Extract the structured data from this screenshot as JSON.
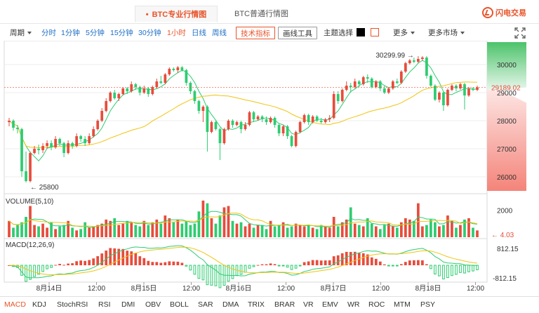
{
  "tabs": [
    {
      "label": "BTC专业行情图",
      "active": true
    },
    {
      "label": "BTC普通行情图",
      "active": false
    }
  ],
  "brand": {
    "label": "闪电交易",
    "icon": "lightning-circle-icon"
  },
  "toolbar": {
    "period_label": "周期",
    "intervals": [
      "分时",
      "1分钟",
      "5分钟",
      "15分钟",
      "30分钟",
      "1小时",
      "日线",
      "周线"
    ],
    "tech_button": "技术指标",
    "draw_button": "画线工具",
    "theme_label": "主题选择",
    "more_label": "更多",
    "more_markets_label": "更多市场",
    "fullscreen_icon": "expand-arrows-icon"
  },
  "chart_data": {
    "type": "candlestick",
    "y_axis": {
      "ticks": [
        26000,
        27000,
        28000,
        29000,
        30000
      ],
      "range": [
        25500,
        30800
      ]
    },
    "x_axis": {
      "labels": [
        "8月14日",
        "12:00",
        "8月15日",
        "12:00",
        "8月16日",
        "12:00",
        "8月17日",
        "12:00",
        "8月18日",
        "12:00"
      ]
    },
    "current_price": "29189.02",
    "annotations": {
      "high": "30299.99",
      "low": "25800"
    },
    "candles": [
      [
        27950,
        28000,
        27800,
        28100
      ],
      [
        28000,
        27750,
        27650,
        28050
      ],
      [
        27750,
        27700,
        27550,
        27850
      ],
      [
        27700,
        26200,
        26000,
        27750
      ],
      [
        26200,
        25850,
        25800,
        26900
      ],
      [
        25850,
        26850,
        25800,
        26900
      ],
      [
        26850,
        27000,
        26800,
        27100
      ],
      [
        27000,
        26950,
        26800,
        27150
      ],
      [
        26950,
        27100,
        26850,
        27200
      ],
      [
        27100,
        27200,
        27000,
        27300
      ],
      [
        27200,
        27050,
        26950,
        27300
      ],
      [
        27050,
        27350,
        27000,
        27450
      ],
      [
        27350,
        27200,
        27100,
        27400
      ],
      [
        27200,
        26850,
        26700,
        27250
      ],
      [
        26850,
        27200,
        26800,
        27300
      ],
      [
        27200,
        27100,
        27000,
        27250
      ],
      [
        27100,
        27450,
        27050,
        27550
      ],
      [
        27450,
        27350,
        27250,
        27500
      ],
      [
        27350,
        27200,
        27100,
        27450
      ],
      [
        27200,
        27450,
        27150,
        27550
      ],
      [
        27450,
        27700,
        27400,
        27800
      ],
      [
        27700,
        28000,
        27650,
        28050
      ],
      [
        28000,
        28350,
        27950,
        28450
      ],
      [
        28350,
        28700,
        28300,
        28800
      ],
      [
        28700,
        29000,
        28650,
        29050
      ],
      [
        29000,
        28800,
        28750,
        29100
      ],
      [
        28800,
        28950,
        28700,
        29000
      ],
      [
        28950,
        29150,
        28900,
        29200
      ],
      [
        29150,
        29050,
        28950,
        29200
      ],
      [
        29050,
        29300,
        29000,
        29400
      ],
      [
        29300,
        29200,
        29100,
        29350
      ],
      [
        29200,
        29000,
        28900,
        29250
      ],
      [
        29000,
        29150,
        28950,
        29250
      ],
      [
        29150,
        28950,
        28850,
        29200
      ],
      [
        28950,
        29200,
        28900,
        29250
      ],
      [
        29200,
        29400,
        29150,
        29500
      ],
      [
        29400,
        29350,
        29300,
        29600
      ],
      [
        29350,
        29650,
        29300,
        29700
      ],
      [
        29650,
        29850,
        29600,
        29900
      ],
      [
        29850,
        29800,
        29750,
        29900
      ],
      [
        29800,
        29900,
        29700,
        29950
      ],
      [
        29900,
        29800,
        29750,
        29950
      ],
      [
        29800,
        29350,
        29250,
        29850
      ],
      [
        29350,
        29050,
        28950,
        29400
      ],
      [
        29050,
        28700,
        28600,
        29100
      ],
      [
        28700,
        28350,
        28250,
        28750
      ],
      [
        28350,
        28500,
        27950,
        28550
      ],
      [
        28500,
        27600,
        26900,
        28550
      ],
      [
        27600,
        27950,
        27550,
        28000
      ],
      [
        27950,
        27700,
        27650,
        28000
      ],
      [
        27700,
        27200,
        26600,
        27750
      ],
      [
        27200,
        27700,
        27150,
        27750
      ],
      [
        27700,
        28000,
        27650,
        28050
      ],
      [
        28000,
        27850,
        27750,
        28050
      ],
      [
        27850,
        27950,
        27800,
        28000
      ],
      [
        27950,
        27700,
        27550,
        28000
      ],
      [
        27700,
        27850,
        27650,
        27950
      ],
      [
        27850,
        28300,
        27800,
        28350
      ],
      [
        28300,
        28050,
        27950,
        28350
      ],
      [
        28050,
        28150,
        28000,
        28200
      ],
      [
        28150,
        28050,
        27950,
        28200
      ],
      [
        28050,
        27950,
        27850,
        28150
      ],
      [
        27950,
        28100,
        27900,
        28150
      ],
      [
        28100,
        27850,
        27750,
        28150
      ],
      [
        27850,
        27550,
        27450,
        27900
      ],
      [
        27550,
        27800,
        27450,
        27850
      ],
      [
        27800,
        27450,
        27350,
        27850
      ],
      [
        27450,
        27100,
        27050,
        27500
      ],
      [
        27100,
        27600,
        27050,
        27650
      ],
      [
        27600,
        27950,
        27550,
        28000
      ],
      [
        27950,
        28200,
        27900,
        28250
      ],
      [
        28200,
        27950,
        27850,
        28250
      ],
      [
        27950,
        28150,
        27900,
        28200
      ],
      [
        28150,
        28000,
        27950,
        28200
      ],
      [
        28000,
        27950,
        27900,
        28100
      ],
      [
        27950,
        28050,
        27900,
        28100
      ],
      [
        28050,
        28100,
        27950,
        28200
      ],
      [
        28100,
        28950,
        28050,
        29050
      ],
      [
        28950,
        28700,
        28600,
        29050
      ],
      [
        28700,
        29100,
        28650,
        29150
      ],
      [
        29100,
        29250,
        29050,
        29400
      ],
      [
        29250,
        29200,
        29000,
        29350
      ],
      [
        29200,
        29400,
        29150,
        29500
      ],
      [
        29400,
        29300,
        29200,
        29450
      ],
      [
        29300,
        29550,
        29250,
        29600
      ],
      [
        29550,
        29500,
        29350,
        29650
      ],
      [
        29500,
        29200,
        29150,
        29550
      ],
      [
        29200,
        29400,
        29150,
        29450
      ],
      [
        29400,
        29150,
        29050,
        29450
      ],
      [
        29150,
        29000,
        28950,
        29250
      ],
      [
        29000,
        29150,
        28950,
        29200
      ],
      [
        29150,
        29400,
        29100,
        29450
      ],
      [
        29400,
        29350,
        29300,
        29500
      ],
      [
        29350,
        29750,
        29300,
        29800
      ],
      [
        29750,
        30050,
        29700,
        30100
      ],
      [
        30050,
        30150,
        30000,
        30200
      ],
      [
        30150,
        30100,
        30050,
        30250
      ],
      [
        30100,
        30200,
        30050,
        30300
      ],
      [
        30200,
        30250,
        30150,
        30300
      ],
      [
        30250,
        29600,
        29500,
        30300
      ],
      [
        29600,
        29250,
        29200,
        29650
      ],
      [
        29250,
        28750,
        28700,
        29300
      ],
      [
        28750,
        29000,
        28650,
        29050
      ],
      [
        29000,
        28550,
        28350,
        29050
      ],
      [
        28550,
        29100,
        28500,
        29150
      ],
      [
        29100,
        29250,
        29050,
        29300
      ],
      [
        29250,
        29150,
        29050,
        29300
      ],
      [
        29150,
        29300,
        29100,
        29350
      ],
      [
        29300,
        28900,
        28400,
        29350
      ],
      [
        28900,
        29150,
        28850,
        29200
      ],
      [
        29150,
        29100,
        29050,
        29200
      ],
      [
        29100,
        29189,
        29050,
        29250
      ]
    ],
    "volume": {
      "label": "VOLUME(5,10)",
      "ticks": [
        2000
      ],
      "last_value": "4.03",
      "values": [
        1200,
        700,
        900,
        1100,
        1500,
        2300,
        900,
        800,
        1000,
        700,
        1100,
        600,
        800,
        900,
        1200,
        700,
        500,
        600,
        1100,
        700,
        800,
        900,
        1000,
        1300,
        1200,
        1400,
        900,
        1000,
        1200,
        1100,
        900,
        800,
        1200,
        900,
        1100,
        1300,
        1000,
        1600,
        1400,
        1100,
        1300,
        1000,
        1200,
        900,
        1000,
        1900,
        2700,
        2500,
        1400,
        1000,
        1600,
        2200,
        2300,
        1200,
        1000,
        1100,
        800,
        1000,
        700,
        900,
        900,
        600,
        1200,
        800,
        900,
        1100,
        700,
        800,
        1000,
        900,
        800,
        900,
        700,
        600,
        900,
        800,
        700,
        1500,
        800,
        1100,
        1300,
        2200,
        1000,
        900,
        800,
        1400,
        1000,
        800,
        600,
        900,
        1000,
        800,
        700,
        1100,
        1400,
        1300,
        1200,
        2500,
        800,
        900,
        1300,
        1100,
        800,
        900,
        1600,
        1200,
        700,
        900,
        1300,
        1400,
        700,
        500
      ]
    },
    "macd": {
      "label": "MACD(12,26,9)",
      "ticks": [
        "812.15",
        "-812.15"
      ]
    }
  },
  "indicators": [
    "MACD",
    "KDJ",
    "StochRSI",
    "RSI",
    "DMI",
    "OBV",
    "BOLL",
    "SAR",
    "DMA",
    "TRIX",
    "BRAR",
    "VR",
    "EMV",
    "WR",
    "ROC",
    "MTM",
    "PSY"
  ],
  "colors": {
    "up": "#e74c3c",
    "down": "#2ecc71",
    "ma_fast": "#2ecc71",
    "ma_slow": "#f1c40f",
    "accent": "#e8542a",
    "link": "#1f6fc5"
  }
}
